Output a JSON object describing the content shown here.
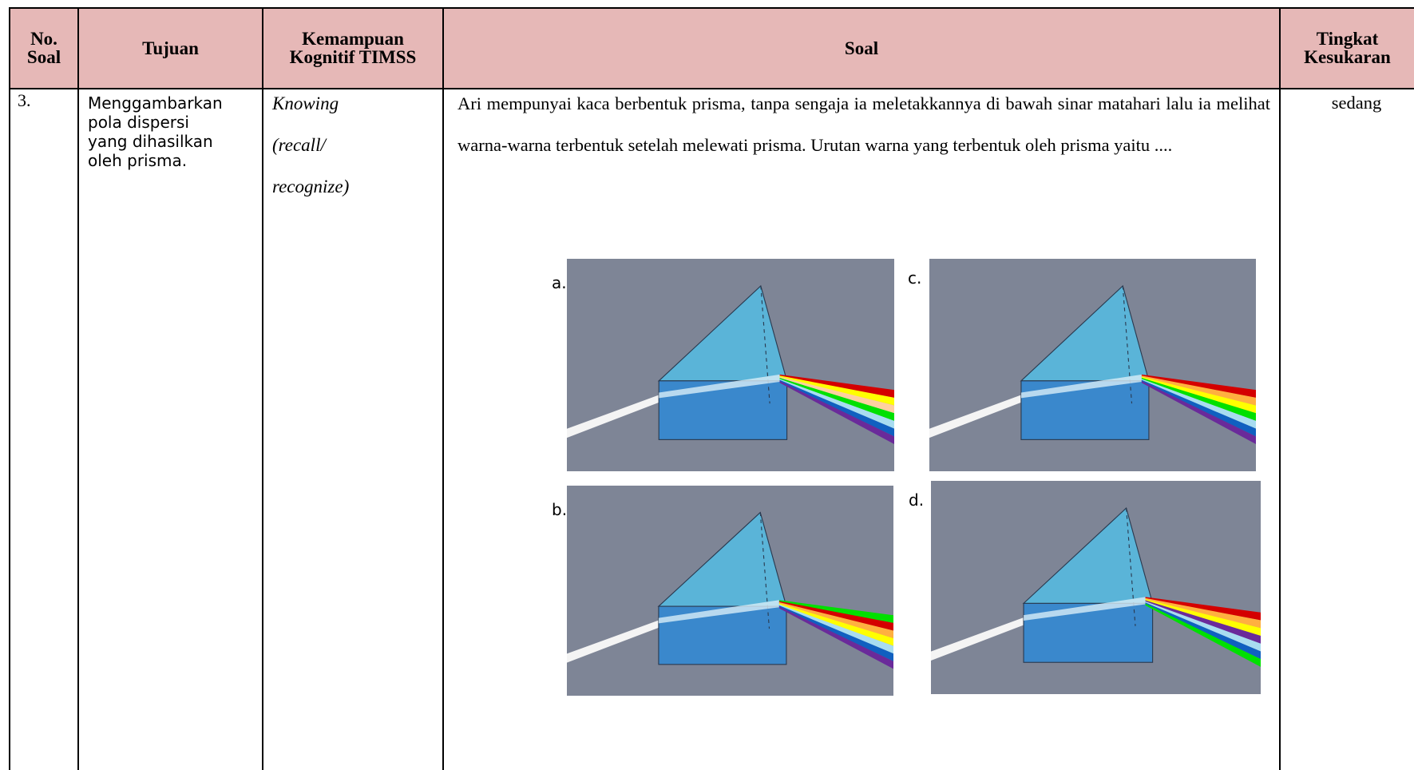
{
  "table": {
    "headers": [
      "No. Soal",
      "Tujuan",
      "Kemampuan Kognitif TIMSS",
      "Soal",
      "Tingkat Kesukaran"
    ],
    "rows": [
      {
        "no": "3.",
        "tujuan": [
          "Menggambarkan",
          "pola dispersi",
          "yang dihasilkan",
          "oleh prisma."
        ],
        "kemampuan": [
          "Knowing",
          "(recall/",
          "recognize)"
        ],
        "soal": "Ari mempunyai kaca berbentuk prisma, tanpa sengaja ia meletakkannya di bawah sinar matahari lalu ia melihat warna-warna terbentuk setelah melewati prisma. Urutan warna yang terbentuk oleh prisma yaitu ....",
        "options": [
          "a.",
          "b.",
          "c.",
          "d."
        ],
        "tingkat": "sedang"
      }
    ]
  }
}
